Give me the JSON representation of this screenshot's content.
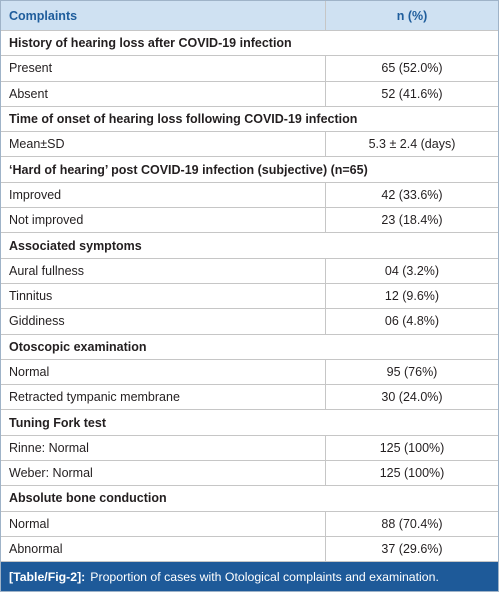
{
  "table": {
    "header": [
      "Complaints",
      "n (%)"
    ],
    "sections": [
      {
        "title": "History of hearing loss after COVID-19 infection",
        "rows": [
          [
            "Present",
            "65 (52.0%)"
          ],
          [
            "Absent",
            "52 (41.6%)"
          ]
        ]
      },
      {
        "title": "Time of onset of hearing loss following COVID-19 infection",
        "rows": [
          [
            "Mean±SD",
            "5.3 ± 2.4 (days)"
          ]
        ]
      },
      {
        "title": "‘Hard of hearing’ post COVID-19 infection (subjective) (n=65)",
        "rows": [
          [
            "Improved",
            "42 (33.6%)"
          ],
          [
            "Not improved",
            "23 (18.4%)"
          ]
        ]
      },
      {
        "title": "Associated symptoms",
        "rows": [
          [
            "Aural fullness",
            "04 (3.2%)"
          ],
          [
            "Tinnitus",
            "12 (9.6%)"
          ],
          [
            "Giddiness",
            "06 (4.8%)"
          ]
        ]
      },
      {
        "title": "Otoscopic examination",
        "rows": [
          [
            "Normal",
            "95 (76%)"
          ],
          [
            "Retracted tympanic membrane",
            "30 (24.0%)"
          ]
        ]
      },
      {
        "title": "Tuning Fork test",
        "rows": [
          [
            "Rinne: Normal",
            "125 (100%)"
          ],
          [
            "Weber: Normal",
            "125 (100%)"
          ]
        ]
      },
      {
        "title": "Absolute bone conduction",
        "rows": [
          [
            "Normal",
            "88 (70.4%)"
          ],
          [
            "Abnormal",
            "37 (29.6%)"
          ]
        ]
      }
    ],
    "caption": {
      "label": "[Table/Fig-2]:",
      "text": "Proportion of cases with Otological complaints and examination."
    }
  }
}
